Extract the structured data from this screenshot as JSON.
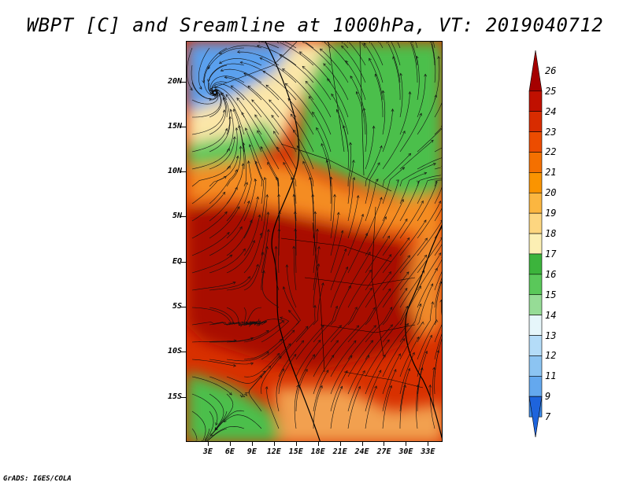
{
  "title": "WBPT [C] and Sreamline at 1000hPa, VT: 2019040712",
  "footer": "GrADS: IGES/COLA",
  "map": {
    "lat_labels": [
      "20N",
      "15N",
      "10N",
      "5N",
      "EQ",
      "5S",
      "10S",
      "15S"
    ],
    "lat_values": [
      20,
      15,
      10,
      5,
      0,
      -5,
      -10,
      -15
    ],
    "lon_labels": [
      "3E",
      "6E",
      "9E",
      "12E",
      "15E",
      "18E",
      "21E",
      "24E",
      "27E",
      "30E",
      "33E"
    ],
    "lon_values": [
      3,
      6,
      9,
      12,
      15,
      18,
      21,
      24,
      27,
      30,
      33
    ],
    "lon_range": [
      0,
      35
    ],
    "lat_range": [
      -20,
      24.5
    ]
  },
  "colorbar": {
    "labels": [
      "26",
      "25",
      "24",
      "23",
      "22",
      "21",
      "20",
      "19",
      "18",
      "17",
      "16",
      "15",
      "14",
      "13",
      "12",
      "11",
      "9",
      "7"
    ],
    "colors": [
      "#a50000",
      "#c01000",
      "#d82c00",
      "#ec4c00",
      "#f47000",
      "#fa9400",
      "#fbb640",
      "#fdd680",
      "#fcefb4",
      "#3cb43c",
      "#5ac85a",
      "#96dc96",
      "#e6f6fa",
      "#b4dcf8",
      "#8cc4f2",
      "#64a8ee",
      "#3c8cec",
      "#1e64dc"
    ]
  }
}
